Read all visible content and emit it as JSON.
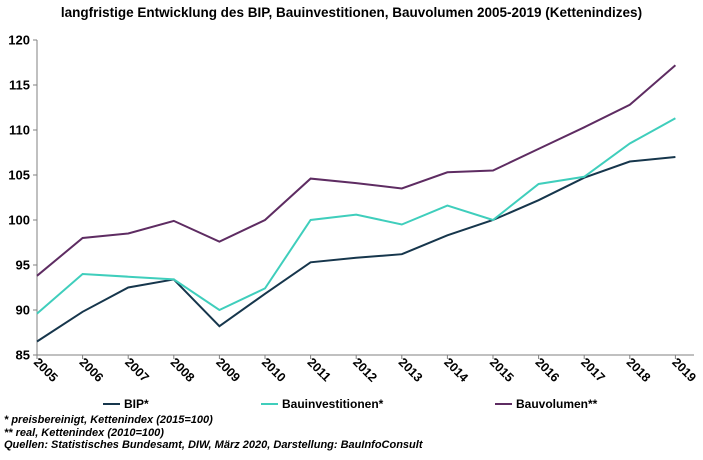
{
  "title": "langfristige Entwicklung des BIP, Bauinvestitionen, Bauvolumen 2005-2019 (Kettenindizes)",
  "chart_data": {
    "type": "line",
    "categories": [
      "2005",
      "2006",
      "2007",
      "2008",
      "2009",
      "2010",
      "2011",
      "2012",
      "2013",
      "2014",
      "2015",
      "2016",
      "2017",
      "2018",
      "2019"
    ],
    "series": [
      {
        "name": "BIP*",
        "color": "#16364C",
        "values": [
          86.5,
          89.8,
          92.5,
          93.4,
          88.2,
          91.8,
          95.3,
          95.8,
          96.2,
          98.3,
          100.0,
          102.2,
          104.7,
          106.5,
          107.0
        ]
      },
      {
        "name": "Bauinvestitionen*",
        "color": "#3FCEBC",
        "values": [
          89.6,
          94.0,
          93.7,
          93.4,
          90.0,
          92.4,
          100.0,
          100.6,
          99.5,
          101.6,
          100.0,
          104.0,
          104.8,
          108.5,
          111.3
        ]
      },
      {
        "name": "Bauvolumen**",
        "color": "#5E2C62",
        "values": [
          93.8,
          98.0,
          98.5,
          99.9,
          97.6,
          100.0,
          104.6,
          104.1,
          103.5,
          105.3,
          105.5,
          107.9,
          110.3,
          112.8,
          117.2
        ]
      }
    ],
    "ylim": [
      85,
      120
    ],
    "ytick_step": 5,
    "yticks": [
      85,
      90,
      95,
      100,
      105,
      110,
      115,
      120
    ],
    "grid": false,
    "legend_position": "bottom",
    "axis_color": "#808080"
  },
  "footnotes": [
    "* preisbereinigt, Kettenindex (2015=100)",
    "** real, Kettenindex (2010=100)",
    "Quellen: Statistisches Bundesamt, DIW, März 2020, Darstellung: BauInfoConsult"
  ]
}
